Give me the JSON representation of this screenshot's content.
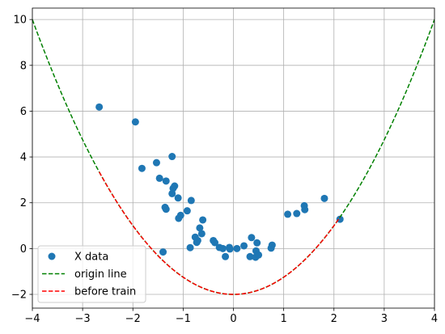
{
  "chart_data": {
    "type": "scatter",
    "title": "",
    "xlabel": "",
    "ylabel": "",
    "xlim": [
      -4,
      4
    ],
    "ylim": [
      -2.6,
      10.5
    ],
    "xticks": [
      -4,
      -3,
      -2,
      -1,
      0,
      1,
      2,
      3,
      4
    ],
    "yticks": [
      -2,
      0,
      2,
      4,
      6,
      8,
      10
    ],
    "xtick_labels": [
      "−4",
      "−3",
      "−2",
      "−1",
      "0",
      "1",
      "2",
      "3",
      "4"
    ],
    "ytick_labels": [
      "−2",
      "0",
      "2",
      "4",
      "6",
      "8",
      "10"
    ],
    "grid": true,
    "legend_position": "lower-left",
    "series": [
      {
        "name": "X data",
        "kind": "scatter",
        "color": "#1f77b4",
        "points": [
          [
            -2.67,
            6.18
          ],
          [
            -1.95,
            5.53
          ],
          [
            -1.82,
            3.5
          ],
          [
            -1.53,
            3.75
          ],
          [
            -1.47,
            3.07
          ],
          [
            -1.34,
            2.95
          ],
          [
            -1.22,
            4.02
          ],
          [
            -1.17,
            2.73
          ],
          [
            -1.2,
            2.63
          ],
          [
            -1.22,
            2.4
          ],
          [
            -1.1,
            2.21
          ],
          [
            -1.36,
            1.8
          ],
          [
            -1.34,
            1.72
          ],
          [
            -1.05,
            1.45
          ],
          [
            -1.09,
            1.32
          ],
          [
            -0.92,
            1.65
          ],
          [
            -0.84,
            2.1
          ],
          [
            -0.61,
            1.25
          ],
          [
            -0.67,
            0.9
          ],
          [
            -0.63,
            0.65
          ],
          [
            -0.76,
            0.5
          ],
          [
            -0.71,
            0.35
          ],
          [
            -0.73,
            0.27
          ],
          [
            -0.86,
            0.04
          ],
          [
            -1.4,
            -0.15
          ],
          [
            -0.4,
            0.35
          ],
          [
            -0.37,
            0.26
          ],
          [
            -0.28,
            0.05
          ],
          [
            -0.21,
            0.0
          ],
          [
            -0.16,
            -0.35
          ],
          [
            -0.08,
            0.05
          ],
          [
            -0.07,
            -0.02
          ],
          [
            0.07,
            0.0
          ],
          [
            0.21,
            0.12
          ],
          [
            0.36,
            0.48
          ],
          [
            0.33,
            -0.35
          ],
          [
            0.44,
            -0.38
          ],
          [
            0.45,
            -0.1
          ],
          [
            0.47,
            0.25
          ],
          [
            0.5,
            -0.28
          ],
          [
            0.75,
            0.02
          ],
          [
            0.77,
            0.15
          ],
          [
            1.08,
            1.5
          ],
          [
            1.26,
            1.53
          ],
          [
            1.41,
            1.87
          ],
          [
            1.42,
            1.7
          ],
          [
            1.81,
            2.19
          ],
          [
            2.12,
            1.28
          ]
        ]
      },
      {
        "name": "origin line",
        "kind": "line",
        "dash": "dashed",
        "color": "#008000",
        "x_range": [
          -4,
          4
        ],
        "formula": "y = 0.75x^2 - 2"
      },
      {
        "name": "before train",
        "kind": "line",
        "dash": "dashed",
        "color": "#ff0000",
        "x_range": [
          -2.67,
          2.12
        ],
        "formula": "y = 0.75x^2 - 2"
      }
    ]
  }
}
